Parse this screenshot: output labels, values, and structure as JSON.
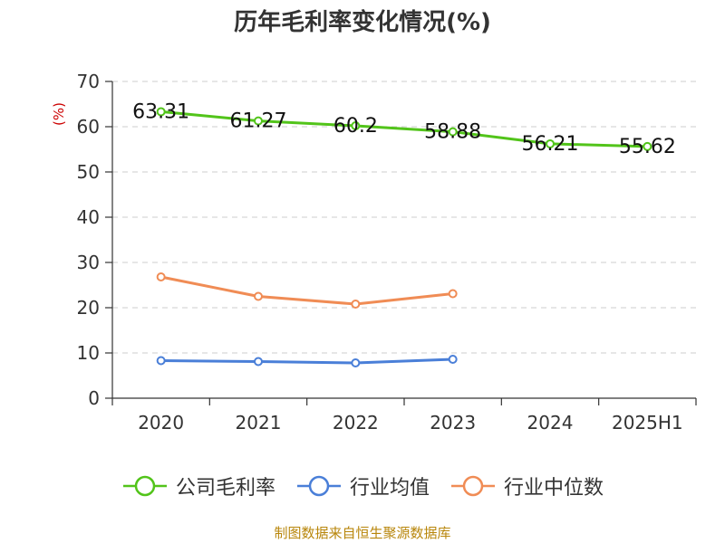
{
  "chart_data": {
    "type": "line",
    "title": "历年毛利率变化情况(%)",
    "ylabel": "(%)",
    "categories": [
      "2020",
      "2021",
      "2022",
      "2023",
      "2024",
      "2025H1"
    ],
    "ylim": [
      0,
      70
    ],
    "yticks": [
      "0",
      "10",
      "20",
      "30",
      "40",
      "50",
      "60",
      "70"
    ],
    "grid": true,
    "legend_position": "bottom",
    "series": [
      {
        "name": "公司毛利率",
        "color": "#52c41a",
        "values": [
          63.31,
          61.27,
          60.2,
          58.88,
          56.21,
          55.62
        ],
        "labels": [
          "63.31",
          "61.27",
          "60.2",
          "58.88",
          "56.21",
          "55.62"
        ]
      },
      {
        "name": "行业均值",
        "color": "#4a7fd8",
        "values": [
          8.3,
          8.1,
          7.8,
          8.6,
          null,
          null
        ]
      },
      {
        "name": "行业中位数",
        "color": "#f08c55",
        "values": [
          26.8,
          22.5,
          20.8,
          23.1,
          null,
          null
        ]
      }
    ]
  },
  "source_note": "制图数据来自恒生聚源数据库"
}
